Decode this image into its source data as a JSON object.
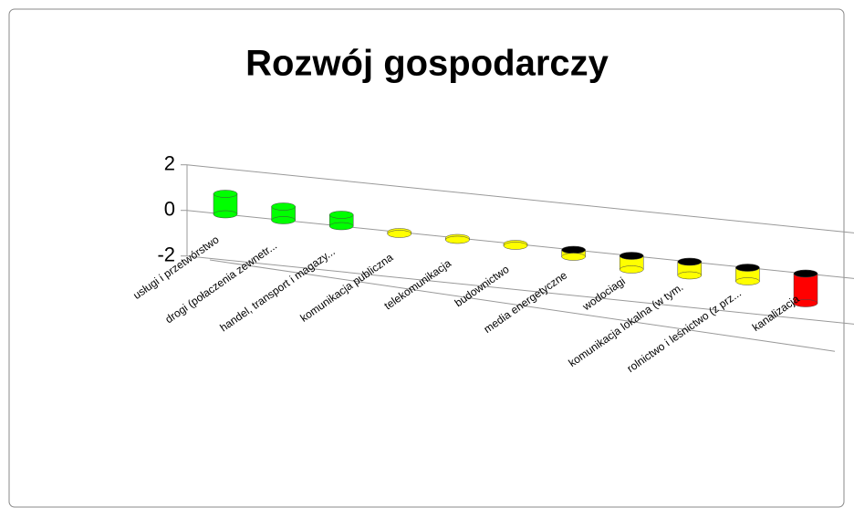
{
  "chart_data": {
    "type": "bar3d",
    "title": "Rozwój gospodarczy",
    "categories": [
      "usługi i przetwórstwo",
      "drogi (połaczenia zewnetr...",
      "handel, transport i magazy...",
      "komunikacja publiczna",
      "telekomunikacja",
      "budownictwo",
      "media energetyczne",
      "wodociagi",
      "komunikacja lokalna (w tym.",
      "rolnictwo i leśnictwo (z prz...",
      "kanalizacja"
    ],
    "values": [
      0.9,
      0.6,
      0.5,
      0,
      0,
      0,
      -0.3,
      -0.6,
      -0.6,
      -0.6,
      -1.3
    ],
    "colors": [
      "#00ff00",
      "#00ff00",
      "#00ff00",
      "#ffff00",
      "#ffff00",
      "#ffff00",
      "#ffff00",
      "#ffff00",
      "#ffff00",
      "#ffff00",
      "#ff0000"
    ],
    "ylim": [
      -2,
      2
    ],
    "yticks": [
      -2,
      0,
      2
    ],
    "grid": true
  }
}
